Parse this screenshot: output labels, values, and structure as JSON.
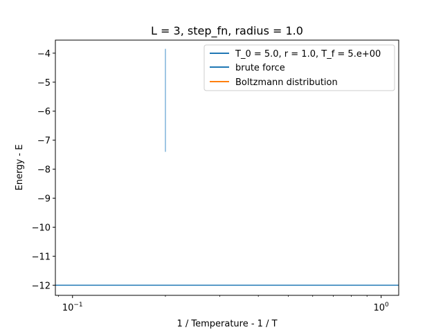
{
  "chart_data": {
    "type": "line",
    "title": "L = 3, step_fn, radius = 1.0",
    "xlabel": "1 / Temperature - 1 / T",
    "ylabel": "Energy - E",
    "xscale": "log",
    "xlim": [
      0.088,
      1.14
    ],
    "ylim": [
      -12.35,
      -3.55
    ],
    "grid": false,
    "x_ticks": [
      {
        "value": 0.1,
        "base": "10",
        "exp": "−1"
      },
      {
        "value": 1.0,
        "base": "10",
        "exp": "0"
      }
    ],
    "y_ticks": [
      {
        "value": -4,
        "label": "−4"
      },
      {
        "value": -5,
        "label": "−5"
      },
      {
        "value": -6,
        "label": "−6"
      },
      {
        "value": -7,
        "label": "−7"
      },
      {
        "value": -8,
        "label": "−8"
      },
      {
        "value": -9,
        "label": "−9"
      },
      {
        "value": -10,
        "label": "−10"
      },
      {
        "value": -11,
        "label": "−11"
      },
      {
        "value": -12,
        "label": "−12"
      }
    ],
    "legend_position": "upper-right",
    "series": [
      {
        "name": "T_0 = 5.0, r = 1.0, T_f = 5.e+00",
        "color": "#7fb3d9",
        "kind": "vline",
        "x": 0.2,
        "y_range": [
          -7.4,
          -3.85
        ]
      },
      {
        "name": "brute force",
        "color": "#1f77b4",
        "kind": "hline",
        "y": -12.0
      },
      {
        "name": "Boltzmann distribution",
        "color": "#ff7f0e",
        "kind": "none"
      }
    ],
    "legend_colors": [
      "#1f77b4",
      "#1f77b4",
      "#ff7f0e"
    ]
  }
}
